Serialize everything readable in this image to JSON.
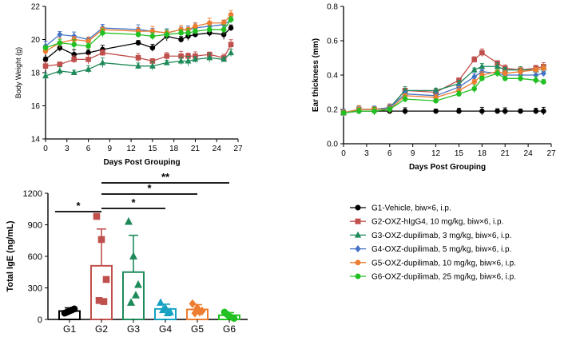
{
  "chart_data": [
    {
      "id": "body-weight",
      "type": "line",
      "xlabel": "Days Post Grouping",
      "ylabel": "Body Weight (g)",
      "xlim": [
        0,
        27
      ],
      "ylim": [
        14,
        22
      ],
      "xticks": [
        0,
        3,
        6,
        9,
        12,
        15,
        18,
        21,
        24,
        27
      ],
      "yticks": [
        14,
        16,
        18,
        20,
        22
      ],
      "series": [
        {
          "name": "G1-Vehicle, biw×6, i.p.",
          "color": "#000000",
          "marker": "circle",
          "x": [
            0,
            2,
            4,
            6,
            8,
            13,
            15,
            17,
            19,
            20,
            21,
            23,
            25,
            26
          ],
          "y": [
            18.8,
            19.5,
            19.1,
            19.2,
            19.4,
            19.8,
            19.5,
            20.2,
            20.0,
            20.2,
            20.3,
            20.4,
            20.3,
            20.7
          ]
        },
        {
          "name": "G2-OXZ-hIgG4, 10 mg/kg, biw×6, i.p.",
          "color": "#c0504d",
          "marker": "square",
          "x": [
            0,
            2,
            4,
            6,
            8,
            13,
            15,
            17,
            19,
            20,
            21,
            23,
            25,
            26
          ],
          "y": [
            18.4,
            18.5,
            18.8,
            18.8,
            19.2,
            18.9,
            18.7,
            19.0,
            19.0,
            19.0,
            19.0,
            19.1,
            18.9,
            19.7
          ]
        },
        {
          "name": "G3-OXZ-dupilimab, 3 mg/kg, biw×6, i.p.",
          "color": "#1e8a5a",
          "marker": "triangle",
          "x": [
            0,
            2,
            4,
            6,
            8,
            13,
            15,
            17,
            19,
            20,
            21,
            23,
            25,
            26
          ],
          "y": [
            17.8,
            18.1,
            18.0,
            18.2,
            18.6,
            18.4,
            18.4,
            18.6,
            18.7,
            18.7,
            18.8,
            18.9,
            18.8,
            19.2
          ]
        },
        {
          "name": "G4-OXZ-dupilimab, 5 mg/kg, biw×6, i.p.",
          "color": "#4472c4",
          "marker": "diamond",
          "x": [
            0,
            2,
            4,
            6,
            8,
            13,
            15,
            17,
            19,
            20,
            21,
            23,
            25,
            26
          ],
          "y": [
            19.6,
            20.3,
            20.2,
            20.0,
            20.7,
            20.6,
            20.5,
            20.4,
            20.6,
            20.6,
            20.7,
            20.8,
            20.9,
            21.2
          ]
        },
        {
          "name": "G5-OXZ-dupilimab, 10 mg/kg, biw×6, i.p.",
          "color": "#ed7d31",
          "marker": "circle",
          "x": [
            0,
            2,
            4,
            6,
            8,
            13,
            15,
            17,
            19,
            20,
            21,
            23,
            25,
            26
          ],
          "y": [
            19.3,
            19.8,
            20.0,
            19.9,
            20.6,
            20.5,
            20.5,
            20.4,
            20.6,
            20.6,
            20.8,
            21.0,
            21.0,
            21.5
          ]
        },
        {
          "name": "G6-OXZ-dupilimab, 25 mg/kg, biw×6, i.p.",
          "color": "#22c022",
          "marker": "circle",
          "x": [
            0,
            2,
            4,
            6,
            8,
            13,
            15,
            17,
            19,
            20,
            21,
            23,
            25,
            26
          ],
          "y": [
            19.5,
            19.8,
            19.7,
            19.6,
            20.4,
            20.3,
            20.2,
            20.3,
            20.4,
            20.4,
            20.5,
            20.6,
            20.6,
            21.2
          ]
        }
      ]
    },
    {
      "id": "ear-thickness",
      "type": "line",
      "xlabel": "Days Post Grouping",
      "ylabel": "Ear thickness (mm)",
      "xlim": [
        0,
        27
      ],
      "ylim": [
        0.0,
        0.8
      ],
      "xticks": [
        0,
        3,
        6,
        9,
        12,
        15,
        18,
        21,
        24,
        27
      ],
      "yticks": [
        0.0,
        0.2,
        0.4,
        0.6,
        0.8
      ],
      "series": [
        {
          "name": "G1-Vehicle, biw×6, i.p.",
          "color": "#000000",
          "marker": "circle",
          "x": [
            0,
            2,
            4,
            6,
            8,
            12,
            15,
            18,
            20,
            21,
            23,
            25,
            26
          ],
          "y": [
            0.18,
            0.19,
            0.19,
            0.19,
            0.19,
            0.19,
            0.19,
            0.19,
            0.19,
            0.19,
            0.19,
            0.19,
            0.19
          ]
        },
        {
          "name": "G2-OXZ-hIgG4, 10 mg/kg, biw×6, i.p.",
          "color": "#c0504d",
          "marker": "square",
          "x": [
            0,
            2,
            4,
            6,
            8,
            12,
            15,
            17,
            18,
            20,
            21,
            23,
            25,
            26
          ],
          "y": [
            0.18,
            0.2,
            0.2,
            0.21,
            0.31,
            0.3,
            0.37,
            0.49,
            0.53,
            0.47,
            0.44,
            0.43,
            0.44,
            0.45
          ]
        },
        {
          "name": "G3-OXZ-dupilimab, 3 mg/kg, biw×6, i.p.",
          "color": "#1e8a5a",
          "marker": "triangle",
          "x": [
            0,
            2,
            4,
            6,
            8,
            12,
            15,
            17,
            18,
            20,
            21,
            23,
            25,
            26
          ],
          "y": [
            0.18,
            0.2,
            0.2,
            0.21,
            0.31,
            0.31,
            0.35,
            0.43,
            0.45,
            0.45,
            0.43,
            0.43,
            0.43,
            0.44
          ]
        },
        {
          "name": "G4-OXZ-dupilimab, 5 mg/kg, biw×6, i.p.",
          "color": "#4472c4",
          "marker": "diamond",
          "x": [
            0,
            2,
            4,
            6,
            8,
            12,
            15,
            17,
            18,
            20,
            21,
            23,
            25,
            26
          ],
          "y": [
            0.18,
            0.2,
            0.2,
            0.21,
            0.29,
            0.28,
            0.33,
            0.39,
            0.42,
            0.41,
            0.4,
            0.4,
            0.4,
            0.41
          ]
        },
        {
          "name": "G5-OXZ-dupilimab, 10 mg/kg, biw×6, i.p.",
          "color": "#ed7d31",
          "marker": "circle",
          "x": [
            0,
            2,
            4,
            6,
            8,
            12,
            15,
            17,
            18,
            20,
            21,
            23,
            25,
            26
          ],
          "y": [
            0.18,
            0.2,
            0.2,
            0.2,
            0.28,
            0.27,
            0.31,
            0.36,
            0.4,
            0.42,
            0.41,
            0.42,
            0.43,
            0.44
          ]
        },
        {
          "name": "G6-OXZ-dupilimab, 25 mg/kg, biw×6, i.p.",
          "color": "#22c022",
          "marker": "circle",
          "x": [
            0,
            2,
            4,
            6,
            8,
            12,
            15,
            17,
            18,
            20,
            21,
            23,
            25,
            26
          ],
          "y": [
            0.18,
            0.19,
            0.19,
            0.2,
            0.26,
            0.25,
            0.29,
            0.32,
            0.38,
            0.41,
            0.38,
            0.38,
            0.37,
            0.36
          ]
        }
      ]
    },
    {
      "id": "total-ige",
      "type": "bar",
      "ylabel": "Total IgE (ng/mL)",
      "ylim": [
        0,
        1200
      ],
      "yticks": [
        0,
        300,
        600,
        900,
        1200
      ],
      "categories": [
        "G1",
        "G2",
        "G3",
        "G4",
        "G5",
        "G6"
      ],
      "values": [
        80,
        510,
        450,
        100,
        95,
        40
      ],
      "errors": [
        30,
        350,
        350,
        45,
        45,
        25
      ],
      "colors": [
        "#000000",
        "#c0504d",
        "#1e8a5a",
        "#17a2c4",
        "#ed7d31",
        "#22c022"
      ],
      "markers": [
        "circle",
        "square",
        "triangle",
        "triangle",
        "diamond",
        "circle"
      ],
      "points": [
        [
          60,
          80,
          100,
          70,
          90
        ],
        [
          980,
          760,
          380,
          180,
          170
        ],
        [
          930,
          600,
          330,
          160,
          230
        ],
        [
          160,
          110,
          70,
          90,
          60
        ],
        [
          150,
          110,
          80,
          60,
          70
        ],
        [
          70,
          30,
          10,
          50,
          20
        ]
      ],
      "significance": [
        {
          "from": "G1",
          "to": "G2",
          "label": "*"
        },
        {
          "from": "G2",
          "to": "G4",
          "label": "*"
        },
        {
          "from": "G2",
          "to": "G5",
          "label": "*"
        },
        {
          "from": "G2",
          "to": "G6",
          "label": "**"
        }
      ]
    }
  ],
  "legend": [
    {
      "label": "G1-Vehicle, biw×6, i.p.",
      "color": "#000000",
      "marker": "circle"
    },
    {
      "label": "G2-OXZ-hIgG4, 10 mg/kg, biw×6, i.p.",
      "color": "#c0504d",
      "marker": "square"
    },
    {
      "label": "G3-OXZ-dupilimab, 3 mg/kg, biw×6, i.p.",
      "color": "#1e8a5a",
      "marker": "triangle"
    },
    {
      "label": "G4-OXZ-dupilimab, 5 mg/kg, biw×6, i.p.",
      "color": "#4472c4",
      "marker": "diamond"
    },
    {
      "label": "G5-OXZ-dupilimab, 10 mg/kg, biw×6, i.p.",
      "color": "#ed7d31",
      "marker": "circle"
    },
    {
      "label": "G6-OXZ-dupilimab, 25 mg/kg, biw×6, i.p.",
      "color": "#22c022",
      "marker": "circle"
    }
  ]
}
